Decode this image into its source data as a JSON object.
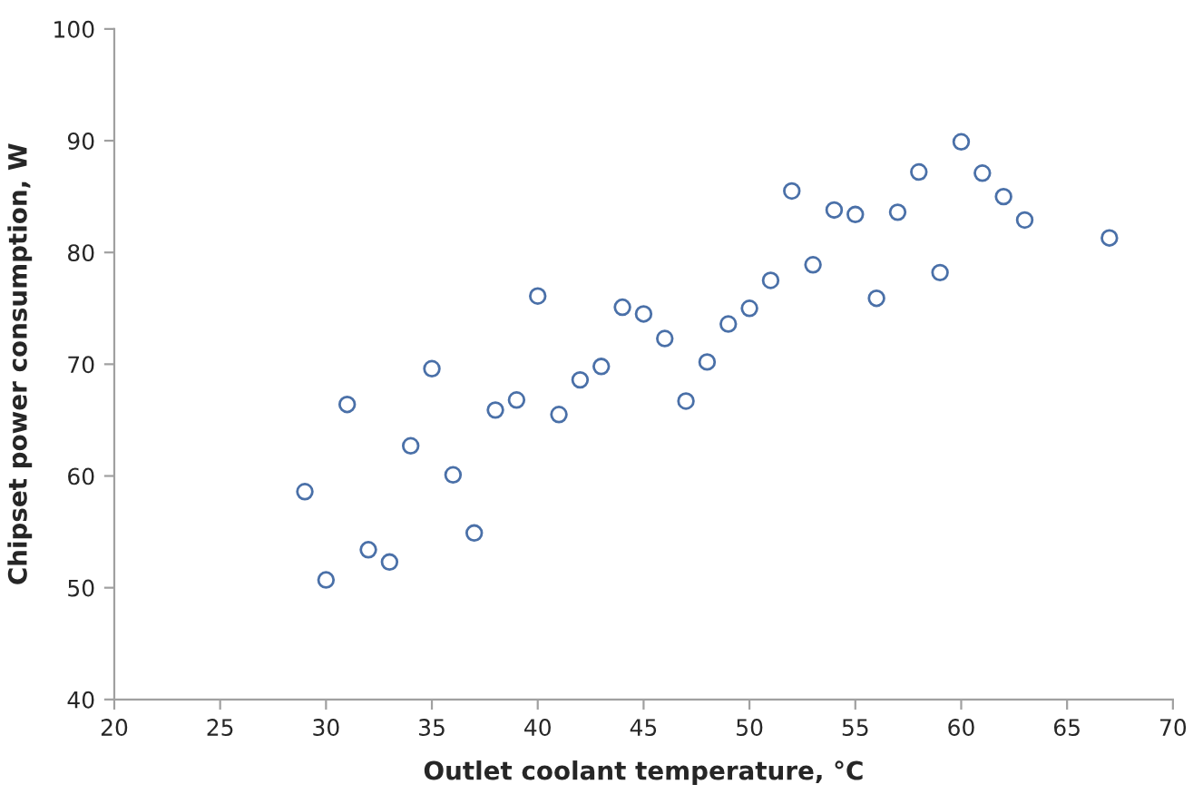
{
  "chart_data": {
    "type": "scatter",
    "xlabel": "Outlet coolant temperature, °C",
    "ylabel": "Chipset power consumption, W",
    "x": [
      29,
      30,
      31,
      32,
      33,
      34,
      35,
      36,
      37,
      38,
      39,
      40,
      41,
      42,
      43,
      44,
      45,
      46,
      47,
      48,
      49,
      50,
      51,
      52,
      53,
      54,
      55,
      56,
      57,
      58,
      59,
      60,
      61,
      62,
      63,
      67
    ],
    "series": [
      {
        "color": "#4a70a8",
        "values": [
          58.6,
          50.7,
          66.4,
          53.4,
          52.3,
          62.7,
          69.6,
          60.1,
          54.9,
          65.9,
          66.8,
          76.1,
          65.5,
          68.6,
          69.8,
          75.1,
          74.5,
          72.3,
          66.7,
          70.2,
          73.6,
          75.0,
          77.5,
          85.5,
          78.9,
          83.8,
          83.4,
          75.9,
          83.6,
          87.2,
          78.2,
          89.9,
          87.1,
          85.0,
          82.9,
          81.3
        ]
      }
    ],
    "xlim": [
      20,
      70
    ],
    "xticks": [
      20,
      25,
      30,
      35,
      40,
      45,
      50,
      55,
      60,
      65,
      70
    ],
    "ylim": [
      40,
      100
    ],
    "yticks": [
      40,
      50,
      60,
      70,
      80,
      90,
      100
    ],
    "marker": "circle",
    "grid": false,
    "legend": false
  }
}
